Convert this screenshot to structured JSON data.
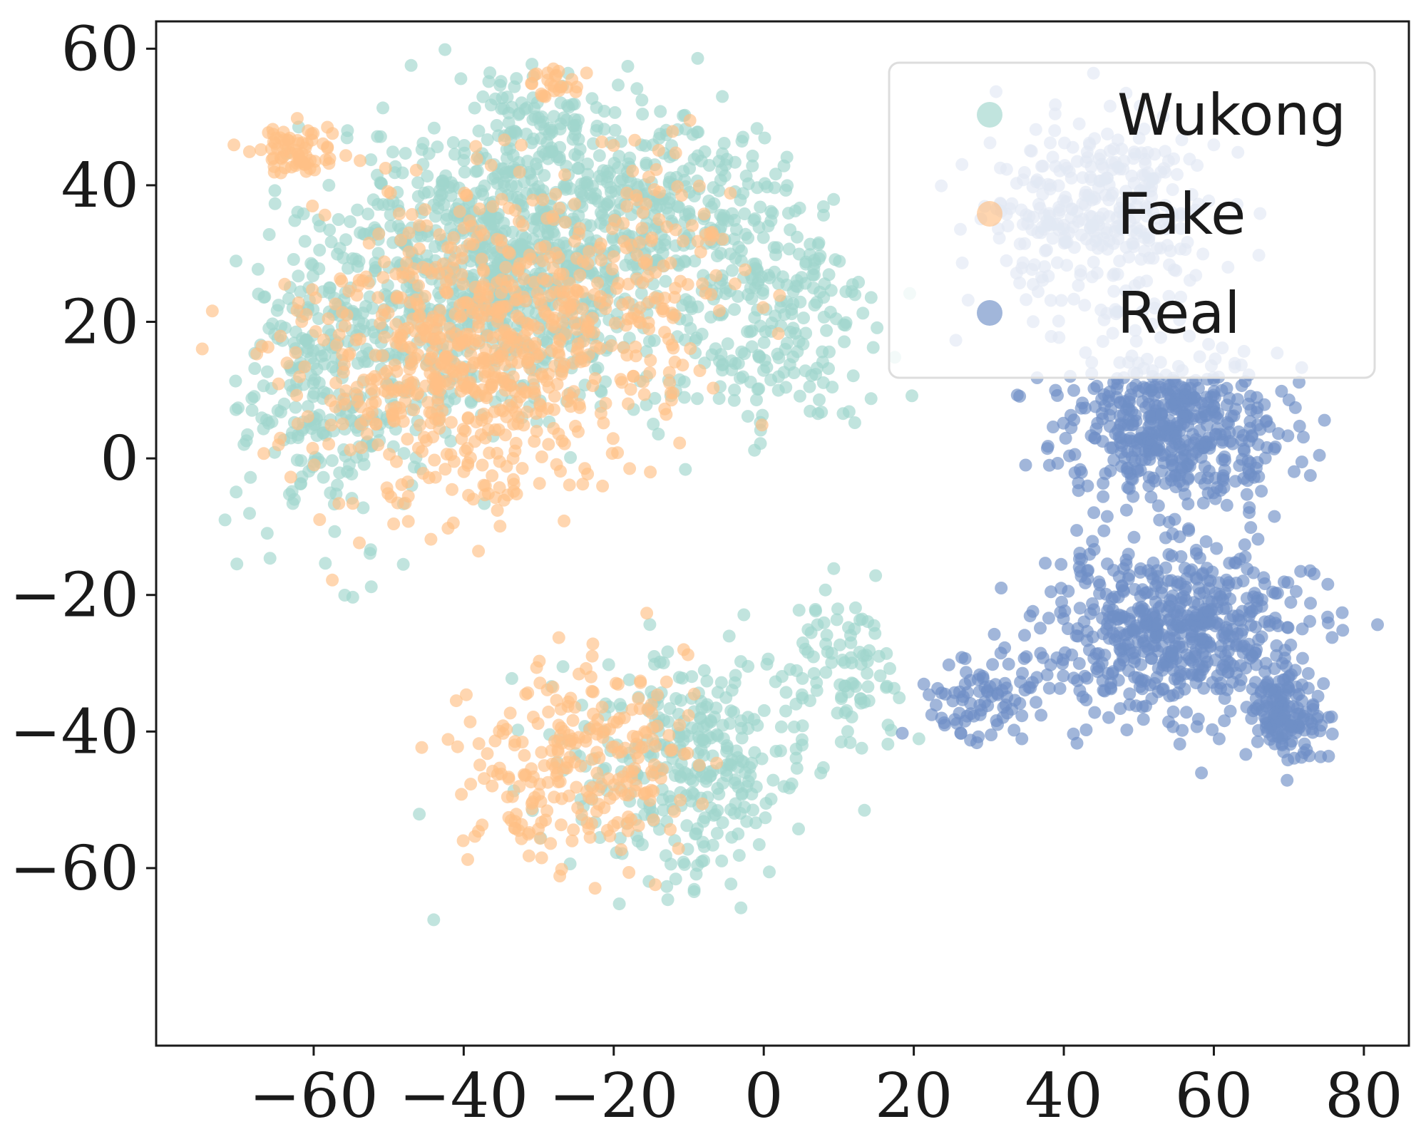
{
  "chart_data": {
    "type": "scatter",
    "title": "",
    "xlabel": "",
    "ylabel": "",
    "xlim": [
      -81,
      86
    ],
    "ylim": [
      -86,
      64
    ],
    "xticks": [
      -60,
      -40,
      -20,
      0,
      20,
      40,
      60,
      80
    ],
    "yticks": [
      60,
      40,
      20,
      0,
      -20,
      -40,
      -60
    ],
    "grid": false,
    "legend_position": "top-right",
    "point_opacity": 0.65,
    "series": [
      {
        "name": "Wukong",
        "color": "#9fd6cd",
        "clusters": [
          {
            "center": [
              -35,
              28
            ],
            "spread": [
              18,
              17
            ],
            "count": 900
          },
          {
            "center": [
              -58,
              10
            ],
            "spread": [
              9,
              18
            ],
            "count": 280
          },
          {
            "center": [
              -15,
              38
            ],
            "spread": [
              15,
              10
            ],
            "count": 260
          },
          {
            "center": [
              -10,
              -45
            ],
            "spread": [
              14,
              13
            ],
            "count": 330
          },
          {
            "center": [
              0,
              20
            ],
            "spread": [
              12,
              15
            ],
            "count": 250
          },
          {
            "center": [
              10,
              -30
            ],
            "spread": [
              8,
              8
            ],
            "count": 90
          },
          {
            "center": [
              -30,
              50
            ],
            "spread": [
              7,
              5
            ],
            "count": 60
          }
        ]
      },
      {
        "name": "Fake",
        "color": "#ffc086",
        "clusters": [
          {
            "center": [
              -40,
              15
            ],
            "spread": [
              17,
              18
            ],
            "count": 650
          },
          {
            "center": [
              -62,
              45
            ],
            "spread": [
              5,
              3
            ],
            "count": 70
          },
          {
            "center": [
              -25,
              -45
            ],
            "spread": [
              12,
              12
            ],
            "count": 260
          },
          {
            "center": [
              -20,
              25
            ],
            "spread": [
              15,
              15
            ],
            "count": 200
          },
          {
            "center": [
              -28,
              55
            ],
            "spread": [
              4,
              2
            ],
            "count": 25
          }
        ]
      },
      {
        "name": "Real",
        "color": "#6f8fc6",
        "clusters": [
          {
            "center": [
              55,
              5
            ],
            "spread": [
              12,
              8
            ],
            "count": 480
          },
          {
            "center": [
              55,
              -25
            ],
            "spread": [
              14,
              10
            ],
            "count": 600
          },
          {
            "center": [
              70,
              -38
            ],
            "spread": [
              4,
              5
            ],
            "count": 130
          },
          {
            "center": [
              45,
              35
            ],
            "spread": [
              12,
              12
            ],
            "count": 350
          },
          {
            "center": [
              30,
              -35
            ],
            "spread": [
              7,
              5
            ],
            "count": 90
          }
        ]
      }
    ]
  }
}
